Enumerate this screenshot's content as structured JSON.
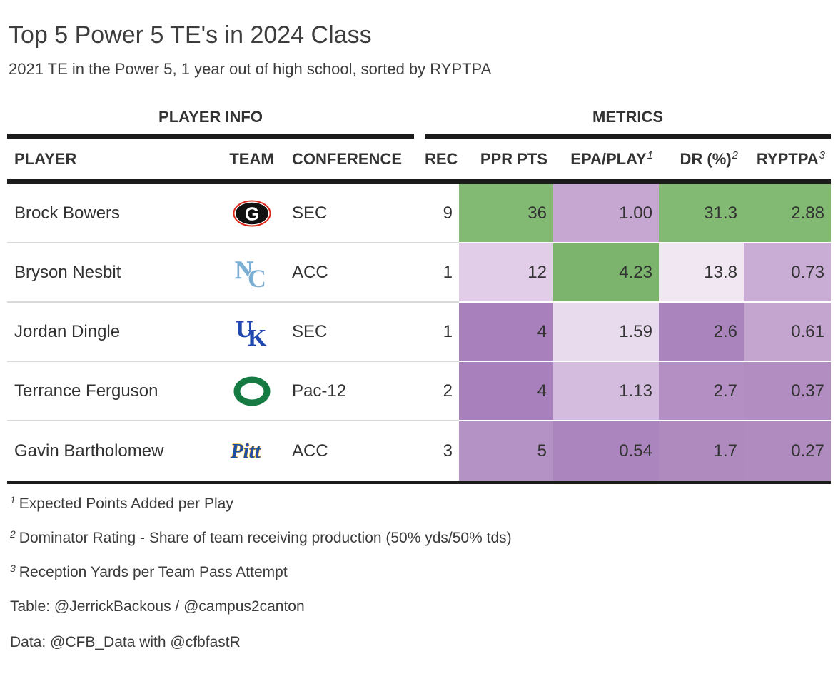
{
  "chart_data": {
    "type": "table",
    "title": "Top 5 Power 5 TE's in 2024 Class",
    "subtitle": "2021 TE in the Power 5, 1 year out of high school, sorted by RYPTPA",
    "column_groups": [
      {
        "label": "PLAYER INFO",
        "span": [
          "player",
          "team",
          "conference"
        ]
      },
      {
        "label": "METRICS",
        "span": [
          "rec",
          "ppr_pts",
          "epa_play",
          "dr_pct",
          "ryptpa"
        ]
      }
    ],
    "columns": [
      {
        "key": "player",
        "label": "PLAYER"
      },
      {
        "key": "team",
        "label": "TEAM"
      },
      {
        "key": "conference",
        "label": "CONFERENCE"
      },
      {
        "key": "rec",
        "label": "REC"
      },
      {
        "key": "ppr_pts",
        "label": "PPR PTS"
      },
      {
        "key": "epa_play",
        "label": "EPA/PLAY",
        "footnote": "1"
      },
      {
        "key": "dr_pct",
        "label": "DR (%)",
        "footnote": "2"
      },
      {
        "key": "ryptpa",
        "label": "RYPTPA",
        "footnote": "3"
      }
    ],
    "rows": [
      {
        "player": "Brock Bowers",
        "team": "Georgia",
        "team_key": "georgia",
        "conference": "SEC",
        "rec": "9",
        "ppr_pts": "36",
        "epa_play": "1.00",
        "dr_pct": "31.3",
        "ryptpa": "2.88",
        "colors": {
          "ppr_pts": "#82B973",
          "epa_play": "#C6A7D2",
          "dr_pct": "#82B973",
          "ryptpa": "#82B973"
        }
      },
      {
        "player": "Bryson Nesbit",
        "team": "North Carolina",
        "team_key": "unc",
        "conference": "ACC",
        "rec": "1",
        "ppr_pts": "12",
        "epa_play": "4.23",
        "dr_pct": "13.8",
        "ryptpa": "0.73",
        "colors": {
          "ppr_pts": "#E1CDE7",
          "epa_play": "#7CB46D",
          "dr_pct": "#F0E7F2",
          "ryptpa": "#C9ADD5"
        }
      },
      {
        "player": "Jordan Dingle",
        "team": "Kentucky",
        "team_key": "kentucky",
        "conference": "SEC",
        "rec": "1",
        "ppr_pts": "4",
        "epa_play": "1.59",
        "dr_pct": "2.6",
        "ryptpa": "0.61",
        "colors": {
          "ppr_pts": "#A881BC",
          "epa_play": "#E9DBEE",
          "dr_pct": "#AA84BD",
          "ryptpa": "#C3A5D0"
        }
      },
      {
        "player": "Terrance Ferguson",
        "team": "Oregon",
        "team_key": "oregon",
        "conference": "Pac-12",
        "rec": "2",
        "ppr_pts": "4",
        "epa_play": "1.13",
        "dr_pct": "2.7",
        "ryptpa": "0.37",
        "colors": {
          "ppr_pts": "#A881BC",
          "epa_play": "#D4BCDE",
          "dr_pct": "#B48FC4",
          "ryptpa": "#B28DC1"
        }
      },
      {
        "player": "Gavin Bartholomew",
        "team": "Pitt",
        "team_key": "pitt",
        "conference": "ACC",
        "rec": "3",
        "ppr_pts": "5",
        "epa_play": "0.54",
        "dr_pct": "1.7",
        "ryptpa": "0.27",
        "colors": {
          "ppr_pts": "#B492C5",
          "epa_play": "#AB86BE",
          "dr_pct": "#AF8ABF",
          "ryptpa": "#B08BC0"
        }
      }
    ],
    "color_scale": {
      "high": "#82B973",
      "low": "#A881BC",
      "mid": "#F0E7F2",
      "uncolored_columns": [
        "rec"
      ]
    }
  },
  "footnotes": [
    {
      "sup": "1",
      "text": "Expected Points Added per Play"
    },
    {
      "sup": "2",
      "text": "Dominator Rating - Share of team receiving production (50% yds/50% tds)"
    },
    {
      "sup": "3",
      "text": "Reception Yards per Team Pass Attempt"
    }
  ],
  "credits": {
    "table": "Table: @JerrickBackous / @campus2canton",
    "data": "Data: @CFB_Data with @cfbfastR"
  },
  "teams": {
    "georgia": {
      "name": "Georgia",
      "oval": "#111111",
      "ring": "#DA291C",
      "letter": "#FFFFFF"
    },
    "unc": {
      "name": "North Carolina",
      "primary": "#7BAFD4"
    },
    "kentucky": {
      "name": "Kentucky",
      "primary": "#2148AE"
    },
    "oregon": {
      "name": "Oregon",
      "primary": "#157B43"
    },
    "pitt": {
      "name": "Pitt",
      "primary": "#1F4EA8",
      "outline": "#FFB81C"
    }
  },
  "colors": {
    "header_bar": "#1B1B1B",
    "row_separator": "#D9D9D9",
    "text": "#3B3B3B"
  }
}
